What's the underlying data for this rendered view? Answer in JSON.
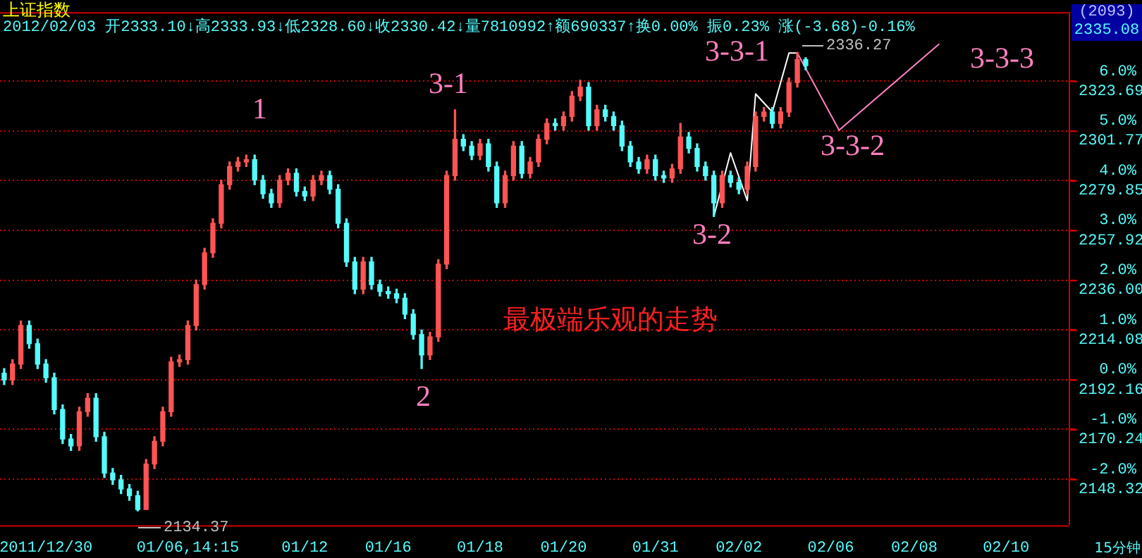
{
  "chart_data": {
    "type": "candlestick",
    "title": "上证指数",
    "subtitle": "2012/02/03 开2333.10↓高2333.93↓低2328.60↓收2330.42↓量7810992↑额690337↑换0.00% 振0.23% 涨(-3.68)-0.16%",
    "categories": [
      null,
      null,
      null,
      null,
      null,
      "2011/12/30",
      null,
      null,
      null,
      null,
      null,
      null,
      null,
      null,
      null,
      null,
      null,
      null,
      null,
      null,
      null,
      null,
      "01/06,14:15",
      null,
      null,
      null,
      null,
      null,
      null,
      null,
      null,
      null,
      null,
      null,
      null,
      null,
      "01/12",
      null,
      null,
      null,
      null,
      null,
      null,
      null,
      null,
      null,
      "01/16",
      null,
      null,
      null,
      null,
      null,
      null,
      null,
      null,
      null,
      null,
      "01/18",
      null,
      null,
      null,
      null,
      null,
      null,
      null,
      null,
      null,
      "01/20",
      null,
      null,
      null,
      null,
      null,
      null,
      null,
      null,
      null,
      null,
      "01/31",
      null,
      null,
      null,
      null,
      null,
      null,
      null,
      null,
      null,
      "02/02",
      null,
      null,
      null,
      null,
      null,
      null,
      null,
      null,
      null,
      null,
      "02/06",
      null,
      null,
      null,
      null,
      null,
      null,
      null,
      null,
      null,
      "02/08",
      null,
      null,
      null,
      null,
      null,
      null,
      null,
      null,
      null,
      null,
      "02/10",
      null,
      null,
      null,
      null,
      null,
      null,
      null
    ],
    "ohlc": [
      [
        2195,
        2197,
        2190,
        2192
      ],
      [
        2192,
        2201,
        2190,
        2199
      ],
      [
        2199,
        2218,
        2197,
        2216
      ],
      [
        2216,
        2218,
        2206,
        2208
      ],
      [
        2208,
        2210,
        2197,
        2199
      ],
      [
        2199,
        2201,
        2191,
        2193
      ],
      [
        2193,
        2195,
        2177,
        2179
      ],
      [
        2179,
        2181,
        2164,
        2166
      ],
      [
        2166,
        2168,
        2161,
        2163
      ],
      [
        2163,
        2180,
        2161,
        2178
      ],
      [
        2178,
        2186,
        2176,
        2184
      ],
      [
        2184,
        2186,
        2165,
        2167
      ],
      [
        2167,
        2169,
        2149,
        2151
      ],
      [
        2151,
        2153,
        2146,
        2148
      ],
      [
        2148,
        2150,
        2142,
        2144
      ],
      [
        2144,
        2146,
        2139,
        2141
      ],
      [
        2141,
        2143,
        2134.37,
        2135
      ],
      [
        2135,
        2157,
        2135,
        2155
      ],
      [
        2155,
        2167,
        2153,
        2165
      ],
      [
        2165,
        2180,
        2163,
        2178
      ],
      [
        2178,
        2202,
        2176,
        2200
      ],
      [
        2200,
        2203,
        2198,
        2201
      ],
      [
        2201,
        2218,
        2199,
        2216
      ],
      [
        2216,
        2236,
        2214,
        2234
      ],
      [
        2234,
        2250,
        2232,
        2248
      ],
      [
        2248,
        2263,
        2246,
        2261
      ],
      [
        2261,
        2280,
        2259,
        2278
      ],
      [
        2278,
        2288,
        2276,
        2286
      ],
      [
        2286,
        2290,
        2284,
        2288
      ],
      [
        2288,
        2291,
        2286,
        2289
      ],
      [
        2289,
        2291,
        2278,
        2280
      ],
      [
        2280,
        2282,
        2272,
        2274
      ],
      [
        2274,
        2276,
        2268,
        2270
      ],
      [
        2270,
        2282,
        2268,
        2280
      ],
      [
        2280,
        2285,
        2278,
        2283
      ],
      [
        2283,
        2285,
        2273,
        2275
      ],
      [
        2275,
        2277,
        2271,
        2273
      ],
      [
        2273,
        2282,
        2271,
        2280
      ],
      [
        2280,
        2284,
        2278,
        2282
      ],
      [
        2282,
        2284,
        2274,
        2276
      ],
      [
        2276,
        2278,
        2259,
        2261
      ],
      [
        2261,
        2263,
        2242,
        2244
      ],
      [
        2244,
        2246,
        2230,
        2232
      ],
      [
        2232,
        2246,
        2230,
        2244
      ],
      [
        2244,
        2246,
        2232,
        2234
      ],
      [
        2234,
        2236,
        2229,
        2231
      ],
      [
        2231,
        2233,
        2228,
        2230
      ],
      [
        2230,
        2232,
        2226,
        2228
      ],
      [
        2228,
        2230,
        2219,
        2221
      ],
      [
        2221,
        2223,
        2210,
        2212
      ],
      [
        2212,
        2214,
        2197,
        2203
      ],
      [
        2203,
        2213,
        2201,
        2211
      ],
      [
        2211,
        2245,
        2209,
        2243
      ],
      [
        2243,
        2284,
        2241,
        2282
      ],
      [
        2282,
        2311,
        2280,
        2298
      ],
      [
        2298,
        2300,
        2293,
        2295
      ],
      [
        2295,
        2297,
        2289,
        2291
      ],
      [
        2291,
        2298,
        2289,
        2296
      ],
      [
        2296,
        2298,
        2284,
        2286
      ],
      [
        2286,
        2288,
        2268,
        2270
      ],
      [
        2270,
        2284,
        2268,
        2282
      ],
      [
        2282,
        2297,
        2280,
        2295
      ],
      [
        2295,
        2297,
        2281,
        2283
      ],
      [
        2283,
        2290,
        2281,
        2288
      ],
      [
        2288,
        2300,
        2286,
        2298
      ],
      [
        2298,
        2307,
        2296,
        2305
      ],
      [
        2305,
        2307,
        2302,
        2304
      ],
      [
        2304,
        2310,
        2302,
        2308
      ],
      [
        2308,
        2319,
        2306,
        2317
      ],
      [
        2317,
        2324,
        2315,
        2321
      ],
      [
        2321,
        2323,
        2302,
        2304
      ],
      [
        2304,
        2313,
        2302,
        2311
      ],
      [
        2311,
        2313,
        2306,
        2308
      ],
      [
        2308,
        2310,
        2302,
        2304
      ],
      [
        2304,
        2306,
        2293,
        2295
      ],
      [
        2295,
        2297,
        2286,
        2288
      ],
      [
        2288,
        2290,
        2283,
        2285
      ],
      [
        2285,
        2291,
        2283,
        2289
      ],
      [
        2289,
        2291,
        2280,
        2282
      ],
      [
        2282,
        2284,
        2279,
        2281
      ],
      [
        2281,
        2287,
        2279,
        2285
      ],
      [
        2285,
        2305,
        2283,
        2299
      ],
      [
        2299,
        2301,
        2292,
        2294
      ],
      [
        2294,
        2296,
        2284,
        2286
      ],
      [
        2286,
        2288,
        2280,
        2282
      ],
      [
        2282,
        2284,
        2264,
        2270
      ],
      [
        2270,
        2284,
        2268,
        2282
      ],
      [
        2282,
        2284,
        2277,
        2279
      ],
      [
        2279,
        2281,
        2274,
        2276
      ],
      [
        2276,
        2288,
        2274,
        2286
      ],
      [
        2286,
        2310,
        2284,
        2308
      ],
      [
        2308,
        2312,
        2306,
        2310
      ],
      [
        2310,
        2312,
        2303,
        2305
      ],
      [
        2305,
        2312,
        2303,
        2310
      ],
      [
        2310,
        2325,
        2308,
        2323
      ],
      [
        2323,
        2336.27,
        2321,
        2333.1
      ],
      [
        2333.1,
        2333.93,
        2328.6,
        2330.42
      ],
      null,
      null,
      null,
      null,
      null,
      null,
      null,
      null,
      null,
      null,
      null,
      null,
      null,
      null,
      null,
      null,
      null,
      null,
      null,
      null,
      null,
      null,
      null,
      null,
      null,
      null,
      null,
      null,
      null,
      null,
      null
    ],
    "series": [
      {
        "type": "line",
        "color": "#ffffff",
        "values": [
          null,
          null,
          null,
          null,
          null,
          null,
          null,
          null,
          null,
          null,
          null,
          null,
          null,
          null,
          null,
          null,
          null,
          null,
          null,
          null,
          null,
          null,
          null,
          null,
          null,
          null,
          null,
          null,
          null,
          null,
          null,
          null,
          null,
          null,
          null,
          null,
          null,
          null,
          null,
          null,
          null,
          null,
          null,
          null,
          null,
          null,
          null,
          null,
          null,
          null,
          null,
          null,
          null,
          null,
          null,
          null,
          null,
          null,
          null,
          null,
          null,
          null,
          null,
          null,
          null,
          null,
          null,
          null,
          null,
          null,
          null,
          null,
          null,
          null,
          null,
          null,
          null,
          null,
          null,
          null,
          null,
          null,
          null,
          null,
          null,
          2264,
          null,
          2292,
          null,
          2271,
          2318,
          null,
          2310,
          null,
          2336,
          2336,
          null,
          null,
          null,
          null,
          null,
          null,
          null,
          null,
          null,
          null,
          null,
          null,
          null,
          null,
          null,
          null,
          null,
          null,
          null,
          null,
          null,
          null,
          null,
          null,
          null,
          null,
          null,
          null,
          null,
          null,
          null,
          null
        ]
      },
      {
        "type": "line",
        "color": "#ff80c0",
        "values": [
          null,
          null,
          null,
          null,
          null,
          null,
          null,
          null,
          null,
          null,
          null,
          null,
          null,
          null,
          null,
          null,
          null,
          null,
          null,
          null,
          null,
          null,
          null,
          null,
          null,
          null,
          null,
          null,
          null,
          null,
          null,
          null,
          null,
          null,
          null,
          null,
          null,
          null,
          null,
          null,
          null,
          null,
          null,
          null,
          null,
          null,
          null,
          null,
          null,
          null,
          null,
          null,
          null,
          null,
          null,
          null,
          null,
          null,
          null,
          null,
          null,
          null,
          null,
          null,
          null,
          null,
          null,
          null,
          null,
          null,
          null,
          null,
          null,
          null,
          null,
          null,
          null,
          null,
          null,
          null,
          null,
          null,
          null,
          null,
          null,
          null,
          null,
          null,
          null,
          null,
          null,
          null,
          null,
          null,
          null,
          2336,
          null,
          null,
          null,
          null,
          2302,
          null,
          null,
          null,
          null,
          null,
          null,
          null,
          null,
          null,
          null,
          null,
          2340,
          null,
          null,
          null,
          null,
          null,
          null,
          null,
          null,
          null,
          null,
          null,
          null,
          null,
          null,
          null
        ]
      }
    ],
    "ylim": [
      2128,
      2354
    ],
    "yticks": [
      2148.32,
      2170.24,
      2192.16,
      2214.08,
      {
        "value": 2236,
        "label": "2236.00"
      },
      2257.92,
      2279.85,
      2301.77,
      2323.69
    ],
    "y2lim": [
      -2.93,
      7.38
    ],
    "y2ticks": [
      {
        "value": -2,
        "label": "-2.0%"
      },
      {
        "value": -1,
        "label": "-1.0%"
      },
      {
        "value": 0,
        "label": "0.0%"
      },
      {
        "value": 1,
        "label": "1.0%"
      },
      {
        "value": 2,
        "label": "2.0%"
      },
      {
        "value": 3,
        "label": "3.0%"
      },
      {
        "value": 4,
        "label": "4.0%"
      },
      {
        "value": 5,
        "label": "5.0%"
      },
      {
        "value": 6,
        "label": "6.0%"
      }
    ],
    "grid": "y",
    "annotations": [
      "1",
      "3-1",
      "2",
      "3-2",
      "3-3-1",
      "3-3-2",
      "3-3-3",
      "2336.27",
      "2134.37",
      "最极端乐观的走势",
      "(2093)",
      "2335.08",
      "15分钟"
    ]
  }
}
